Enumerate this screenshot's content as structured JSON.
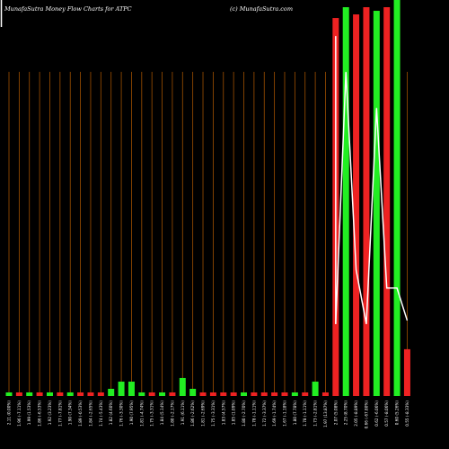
{
  "header": {
    "title": "MunafaSutra  Money Flow  Charts for ATPC",
    "watermark": "(c) MunafaSutra.com"
  },
  "colors": {
    "background": "#000000",
    "gridline": "#a05000",
    "up": "#22ee22",
    "down": "#ee2222",
    "line": "#ffffff"
  },
  "chart_data": {
    "type": "bar",
    "title": "MunafaSutra  Money Flow  Charts for ATPC",
    "categories": [
      "2.11 (0.00%)",
      "1.96 (-7.11%)",
      "1.99 (1.53%)",
      "1.86 (-6.53%)",
      "1.92 (3.23%)",
      "1.77 (-7.81%)",
      "1.90 (7.34%)",
      "1.89 (-0.53%)",
      "1.84 (-2.65%)",
      "1.74 (-5.43%)",
      "1.82 (4.60%)",
      "1.76 (-3.30%)",
      "1.90 (7.95%)",
      "1.81 (-4.74%)",
      "1.75 (-3.31%)",
      "1.84 (5.14%)",
      "1.80 (-2.17%)",
      "1.91 (6.11%)",
      "1.86 (-2.62%)",
      "1.81 (-2.69%)",
      "1.75 (-3.31%)",
      "1.83 (4.57%)",
      "1.85 (1.09%)",
      "1.80 (-2.70%)",
      "1.78 (-1.11%)",
      "1.72 (-3.37%)",
      "1.69 (-1.74%)",
      "1.67 (-1.18%)",
      "1.80 (7.78%)",
      "1.78 (-1.11%)",
      "1.73 (-2.81%)",
      "1.97 (13.87%)",
      "2.07 (5.08%)",
      "2.25 (8.70%)",
      "2.05 (-8.89%)",
      "0.66 (-67.80%)",
      "0.62 (-6.06%)",
      "0.57 (-8.06%)",
      "0.60 (5.26%)",
      "0.55 (-8.33%)"
    ],
    "values": [
      1,
      1,
      1,
      1,
      1,
      1,
      1,
      1,
      1,
      1,
      2,
      4,
      4,
      1,
      1,
      1,
      1,
      5,
      2,
      1,
      1,
      1,
      1,
      1,
      1,
      1,
      1,
      1,
      1,
      1,
      4,
      1,
      105,
      108,
      106,
      108,
      107,
      108,
      110,
      13
    ],
    "directions": [
      "up",
      "down",
      "up",
      "down",
      "up",
      "down",
      "up",
      "down",
      "down",
      "down",
      "up",
      "up",
      "up",
      "up",
      "down",
      "up",
      "down",
      "up",
      "up",
      "down",
      "down",
      "down",
      "down",
      "up",
      "down",
      "down",
      "down",
      "down",
      "up",
      "down",
      "up",
      "red",
      "red",
      "green",
      "red",
      "red",
      "green",
      "red",
      "green",
      "red"
    ],
    "line": [
      null,
      null,
      null,
      null,
      null,
      null,
      null,
      null,
      null,
      null,
      null,
      null,
      null,
      null,
      null,
      null,
      null,
      null,
      null,
      null,
      null,
      null,
      null,
      null,
      null,
      null,
      null,
      null,
      null,
      null,
      null,
      null,
      20,
      90,
      35,
      20,
      80,
      30,
      30,
      21
    ],
    "line_start_value": 100,
    "ylim": [
      0,
      110
    ],
    "grid": true
  }
}
